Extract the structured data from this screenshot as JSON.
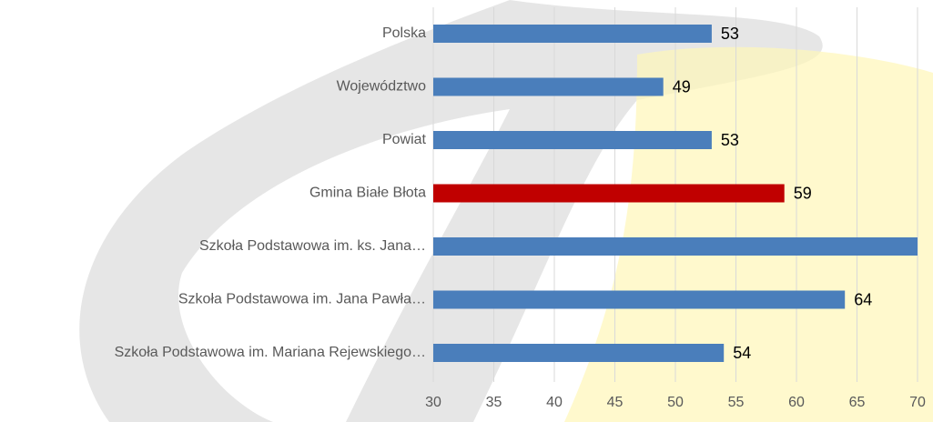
{
  "chart_data": {
    "type": "bar",
    "orientation": "horizontal",
    "categories": [
      "Polska",
      "Województwo",
      "Powiat",
      "Gmina Białe Błota",
      "Szkoła Podstawowa im. ks. Jana…",
      "Szkoła Podstawowa im. Jana Pawła…",
      "Szkoła Podstawowa im. Mariana Rejewskiego…"
    ],
    "values": [
      53,
      49,
      53,
      59,
      70,
      64,
      54
    ],
    "colors": [
      "#4a7ebb",
      "#4a7ebb",
      "#4a7ebb",
      "#c00000",
      "#4a7ebb",
      "#4a7ebb",
      "#4a7ebb"
    ],
    "xlim": [
      30,
      70
    ],
    "xticks": [
      30,
      35,
      40,
      45,
      50,
      55,
      60,
      65,
      70
    ],
    "grid": true
  }
}
